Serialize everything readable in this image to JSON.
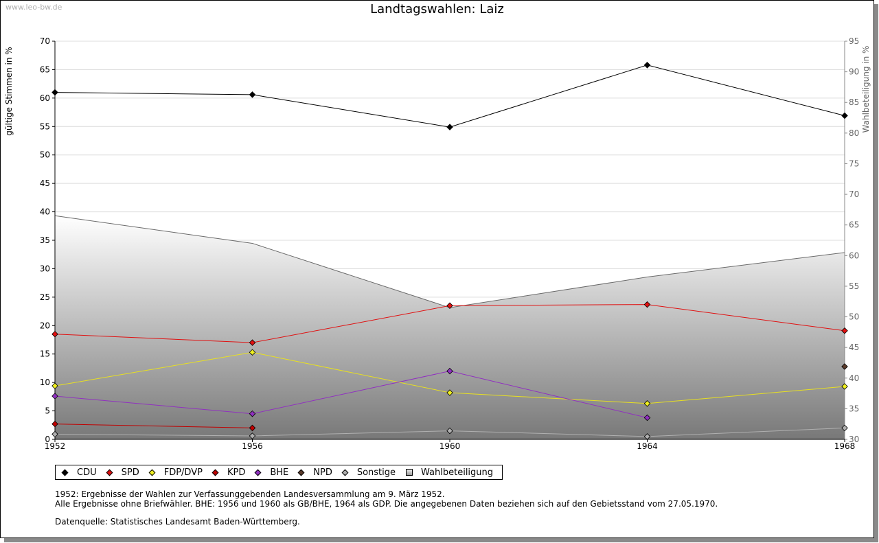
{
  "watermark": "www.leo-bw.de",
  "chart_data": {
    "type": "line",
    "title": "Landtagswahlen: Laiz",
    "ylabel": "gültige Stimmen in %",
    "ylabel_right": "Wahlbeteiligung in %",
    "x": [
      "1952",
      "1956",
      "1960",
      "1964",
      "1968"
    ],
    "ylim": [
      0,
      70
    ],
    "ylim_right": [
      30,
      95
    ],
    "yticks": [
      "0",
      "5",
      "10",
      "15",
      "20",
      "25",
      "30",
      "35",
      "40",
      "45",
      "50",
      "55",
      "60",
      "65",
      "70"
    ],
    "yticks_right": [
      "30",
      "35",
      "40",
      "45",
      "50",
      "55",
      "60",
      "65",
      "70",
      "75",
      "80",
      "85",
      "90",
      "95"
    ],
    "grid": true,
    "series": [
      {
        "name": "CDU",
        "color": "#000000",
        "values": [
          61.0,
          60.6,
          54.9,
          65.8,
          56.9
        ]
      },
      {
        "name": "SPD",
        "color": "#e01010",
        "values": [
          18.5,
          17.0,
          23.5,
          23.7,
          19.1
        ]
      },
      {
        "name": "FDP/DVP",
        "color": "#f0f020",
        "values": [
          9.4,
          15.3,
          8.2,
          6.3,
          9.3
        ]
      },
      {
        "name": "KPD",
        "color": "#c00000",
        "values": [
          2.7,
          2.0,
          null,
          null,
          null
        ]
      },
      {
        "name": "BHE",
        "color": "#9030c0",
        "values": [
          7.6,
          4.5,
          12.0,
          3.8,
          null
        ]
      },
      {
        "name": "NPD",
        "color": "#5a3a2a",
        "values": [
          null,
          null,
          null,
          null,
          12.8
        ]
      },
      {
        "name": "Sonstige",
        "color": "#b0b0b0",
        "values": [
          0.9,
          0.6,
          1.5,
          0.5,
          2.0
        ]
      }
    ],
    "turnout": {
      "name": "Wahlbeteiligung",
      "axis": "right",
      "values": [
        66.5,
        62.0,
        51.5,
        56.5,
        60.5
      ]
    },
    "legend": [
      "CDU",
      "SPD",
      "FDP/DVP",
      "KPD",
      "BHE",
      "NPD",
      "Sonstige",
      "Wahlbeteiligung"
    ]
  },
  "notes": [
    "1952: Ergebnisse der Wahlen zur Verfassunggebenden Landesversammlung am 9. März 1952.",
    "Alle Ergebnisse ohne Briefwähler. BHE: 1956 und 1960 als GB/BHE, 1964 als GDP. Die angegebenen Daten beziehen sich auf den Gebietsstand vom 27.05.1970."
  ],
  "source": "Datenquelle: Statistisches Landesamt Baden-Württemberg."
}
